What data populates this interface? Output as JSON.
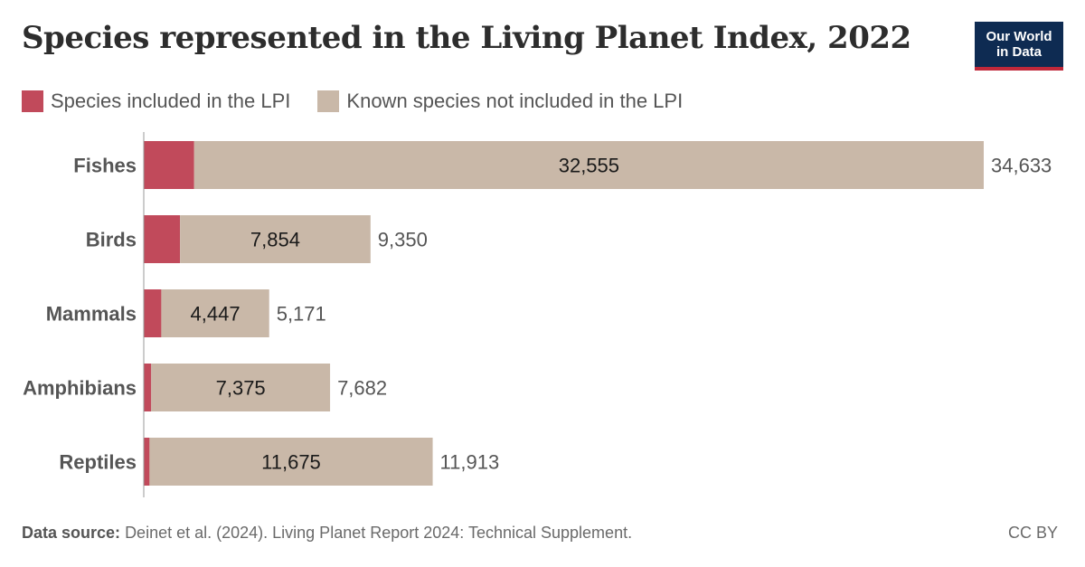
{
  "title": "Species represented in the Living Planet Index, 2022",
  "logo": {
    "line1": "Our World",
    "line2": "in Data"
  },
  "legend": [
    {
      "label": "Species included in the LPI",
      "color": "#c14a5b"
    },
    {
      "label": "Known species not included in the LPI",
      "color": "#c9b8a8"
    }
  ],
  "footer": {
    "source_label": "Data source:",
    "source_text": "Deinet et al. (2024). Living Planet Report 2024: Technical Supplement.",
    "license": "CC BY"
  },
  "chart_data": {
    "type": "bar",
    "orientation": "horizontal",
    "stacked": true,
    "categories": [
      "Fishes",
      "Birds",
      "Mammals",
      "Amphibians",
      "Reptiles"
    ],
    "series": [
      {
        "name": "Species included in the LPI",
        "values": [
          2078,
          1496,
          724,
          307,
          238
        ],
        "color": "#c14a5b"
      },
      {
        "name": "Known species not included in the LPI",
        "values": [
          32555,
          7854,
          4447,
          7375,
          11675
        ],
        "color": "#c9b8a8"
      }
    ],
    "segment_labels": [
      "32,555",
      "7,854",
      "4,447",
      "7,375",
      "11,675"
    ],
    "totals": [
      34633,
      9350,
      5171,
      7682,
      11913
    ],
    "total_labels": [
      "34,633",
      "9,350",
      "5,171",
      "7,682",
      "11,913"
    ],
    "xlim": [
      0,
      34633
    ]
  }
}
